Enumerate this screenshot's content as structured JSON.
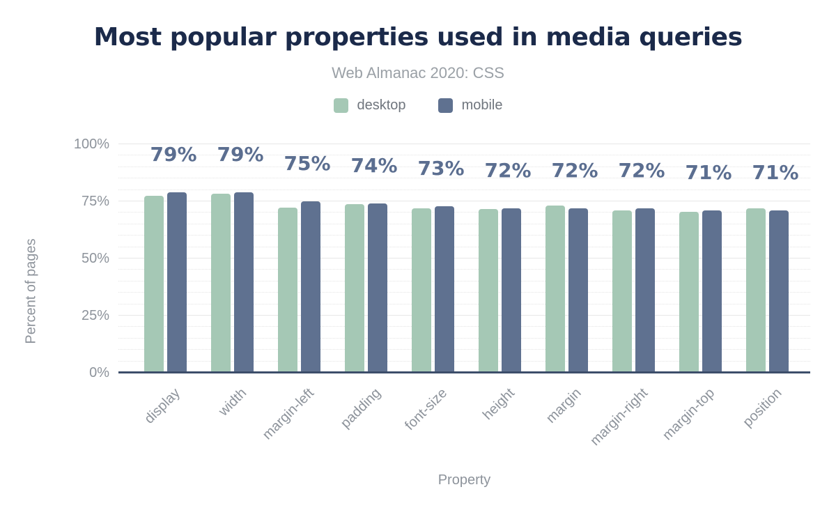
{
  "chart_data": {
    "type": "bar",
    "title": "Most popular properties used in media queries",
    "subtitle": "Web Almanac 2020: CSS",
    "xlabel": "Property",
    "ylabel": "Percent of pages",
    "ylim": [
      0,
      100
    ],
    "yticks": [
      0,
      25,
      50,
      75,
      100
    ],
    "ytick_labels": [
      "0%",
      "25%",
      "50%",
      "75%",
      "100%"
    ],
    "grid": {
      "major_interval_pct": 25,
      "minor_interval_pct": 5,
      "grid_on": true
    },
    "legend_position": "top",
    "categories": [
      "display",
      "width",
      "margin-left",
      "padding",
      "font-size",
      "height",
      "margin",
      "margin-right",
      "margin-top",
      "position"
    ],
    "series": [
      {
        "name": "desktop",
        "color": "#a5c8b5",
        "values": [
          77.4,
          78.4,
          72.4,
          73.8,
          72.0,
          71.8,
          73.2,
          71.0,
          70.5,
          72.0
        ]
      },
      {
        "name": "mobile",
        "color": "#5f7190",
        "values": [
          79,
          79,
          75,
          74,
          73,
          72,
          72,
          72,
          71,
          71
        ]
      }
    ],
    "bar_labels": [
      "79%",
      "79%",
      "75%",
      "74%",
      "73%",
      "72%",
      "72%",
      "72%",
      "71%",
      "71%"
    ],
    "bar_labels_series": "mobile"
  },
  "colors": {
    "title": "#1b2a4a",
    "subtitle": "#9aa0a6",
    "tick_text": "#8d939b",
    "axis_title_text": "#8d939b",
    "legend_text": "#6f757d",
    "data_label": "#5b6e90",
    "baseline": "#3d4e6a",
    "grid_major": "#e7e7e7",
    "grid_minor": "#dcdcdc",
    "desktop_bar": "#a5c8b5",
    "mobile_bar": "#5f7190",
    "background": "#ffffff"
  }
}
